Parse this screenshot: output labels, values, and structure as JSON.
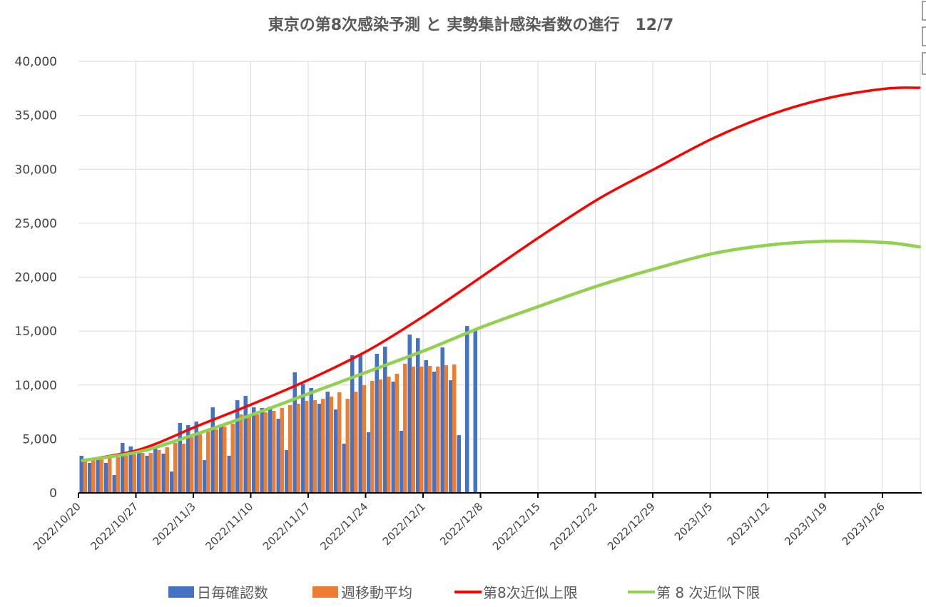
{
  "chart_data": {
    "type": "bar+line",
    "title": "東京の第8次感染予測 と 実勢集計感染者数の進行　12/7",
    "xlabel": "",
    "ylabel": "",
    "ylim": [
      0,
      40000
    ],
    "yticks": [
      "0",
      "5,000",
      "10,000",
      "15,000",
      "20,000",
      "25,000",
      "30,000",
      "35,000",
      "40,000"
    ],
    "x_start": "2022-10-20",
    "x_end": "2023-01-30",
    "xticks": [
      "2022/10/20",
      "2022/10/27",
      "2022/11/3",
      "2022/11/10",
      "2022/11/17",
      "2022/11/24",
      "2022/12/1",
      "2022/12/8",
      "2022/12/15",
      "2022/12/22",
      "2022/12/29",
      "2023/1/5",
      "2023/1/12",
      "2023/1/19",
      "2023/1/26"
    ],
    "grid": true,
    "legend_position": "bottom",
    "colors": {
      "daily": "#4472C4",
      "weekly": "#ED7D31",
      "upper": "#FF0000",
      "lower": "#92D050"
    },
    "series": [
      {
        "name": "日毎確認数",
        "type": "bar",
        "start": "2022-10-20",
        "values": [
          3440,
          2780,
          3240,
          2780,
          1650,
          4630,
          4300,
          3900,
          3440,
          4100,
          3640,
          1980,
          6480,
          6280,
          6610,
          3040,
          7930,
          6150,
          3440,
          8590,
          8990,
          7930,
          7870,
          8000,
          6870,
          3970,
          11170,
          10100,
          9720,
          8260,
          9380,
          7730,
          4560,
          12760,
          12820,
          5620,
          12890,
          13550,
          10310,
          5750,
          14670,
          14340,
          12300,
          11240,
          13480,
          10440,
          5350,
          15470,
          15070
        ]
      },
      {
        "name": "週移動平均",
        "type": "bar",
        "start": "2022-10-20",
        "values": [
          3000,
          3000,
          3100,
          3240,
          3300,
          3440,
          3570,
          3700,
          3700,
          3970,
          4230,
          4630,
          4560,
          5160,
          5420,
          5680,
          5880,
          6150,
          6410,
          7270,
          7270,
          7270,
          7470,
          7600,
          7870,
          8130,
          8260,
          8530,
          8590,
          8720,
          8920,
          9320,
          8720,
          9380,
          9980,
          10380,
          10510,
          10780,
          11040,
          11970,
          11700,
          11700,
          11770,
          11700,
          11830,
          11900
        ]
      },
      {
        "name": "第8次近似上限",
        "type": "line",
        "x": [
          "2022-10-20",
          "2022-10-27",
          "2022-11-03",
          "2022-11-10",
          "2022-11-17",
          "2022-11-24",
          "2022-12-01",
          "2022-12-08",
          "2022-12-15",
          "2022-12-22",
          "2022-12-29",
          "2023-01-05",
          "2023-01-12",
          "2023-01-19",
          "2023-01-26",
          "2023-01-30"
        ],
        "values": [
          3000,
          4030,
          6200,
          8330,
          10640,
          13290,
          16590,
          20230,
          23870,
          27300,
          30140,
          32920,
          35100,
          36620,
          37480,
          37550
        ]
      },
      {
        "name": "第８次近似下限",
        "type": "line",
        "x": [
          "2022-10-20",
          "2022-10-27",
          "2022-11-03",
          "2022-11-10",
          "2022-11-17",
          "2022-11-24",
          "2022-12-01",
          "2022-12-08",
          "2022-12-15",
          "2022-12-22",
          "2022-12-29",
          "2023-01-05",
          "2023-01-12",
          "2023-01-19",
          "2023-01-26",
          "2023-01-30"
        ],
        "values": [
          3000,
          3830,
          5490,
          7340,
          9320,
          11300,
          13290,
          15470,
          17390,
          19240,
          20820,
          22210,
          23000,
          23330,
          23200,
          22800
        ]
      }
    ]
  },
  "legend": {
    "daily": "日毎確認数",
    "weekly": "週移動平均",
    "upper": "第8次近似上限",
    "lower": "第 8 次近似下限"
  }
}
